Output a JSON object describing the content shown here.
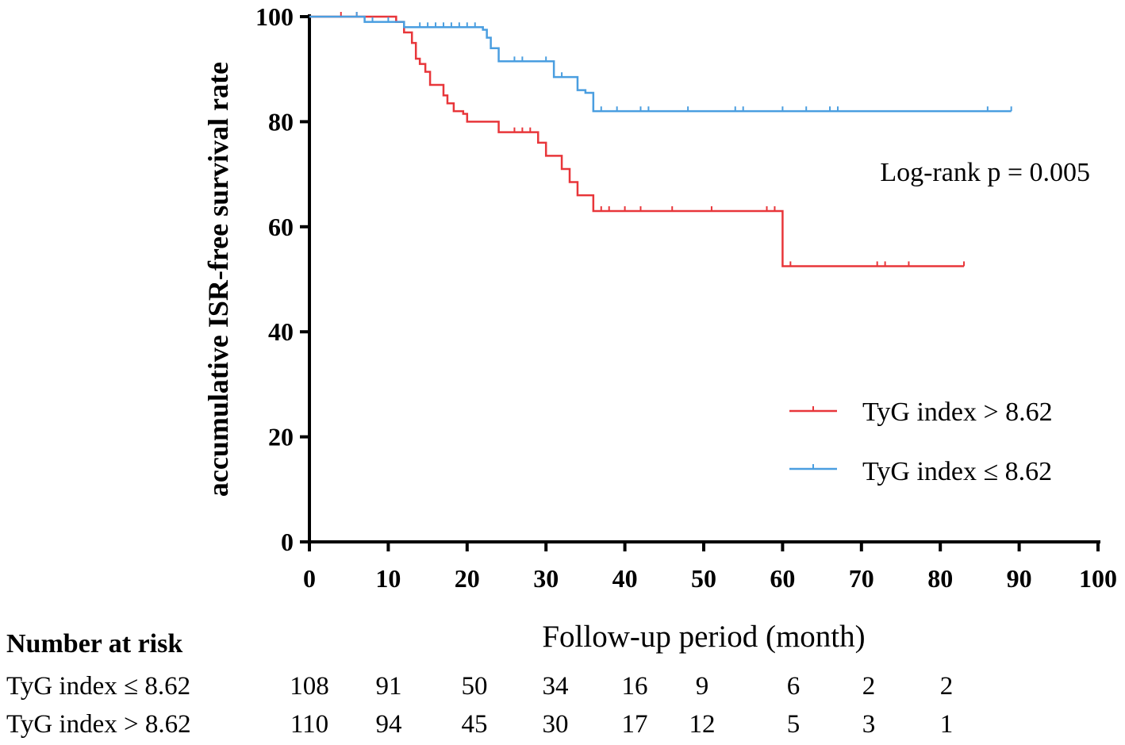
{
  "chart_data": {
    "type": "line",
    "subtype": "kaplan-meier",
    "title": "",
    "ylabel": "accumulative ISR-free survival rate",
    "xlabel": "Follow-up period (month)",
    "xlim": [
      0,
      100
    ],
    "ylim": [
      0,
      100
    ],
    "x_ticks": [
      "0",
      "10",
      "20",
      "30",
      "40",
      "50",
      "60",
      "70",
      "80",
      "90",
      "100"
    ],
    "y_ticks": [
      "0",
      "20",
      "40",
      "60",
      "80",
      "100"
    ],
    "annotation": "Log-rank p = 0.005",
    "legend_position": "right",
    "series": [
      {
        "name": "TyG index > 8.62",
        "color": "#e8363a",
        "steps": [
          [
            0,
            100
          ],
          [
            10,
            100
          ],
          [
            11,
            99
          ],
          [
            12,
            97
          ],
          [
            13,
            95
          ],
          [
            13.5,
            92
          ],
          [
            14,
            91
          ],
          [
            14.7,
            89.5
          ],
          [
            15.3,
            87
          ],
          [
            17,
            85
          ],
          [
            17.5,
            83.5
          ],
          [
            18.3,
            82
          ],
          [
            19.5,
            81.5
          ],
          [
            20,
            80
          ],
          [
            24,
            78
          ],
          [
            29,
            76
          ],
          [
            30,
            73.5
          ],
          [
            32,
            71
          ],
          [
            33,
            68.5
          ],
          [
            34,
            66
          ],
          [
            36,
            63
          ],
          [
            60,
            52.5
          ],
          [
            83,
            52.5
          ]
        ],
        "censor_x": [
          4,
          6,
          11,
          17,
          26,
          27,
          28,
          37,
          38,
          40,
          42,
          46,
          51,
          58,
          59,
          61,
          72,
          73,
          76,
          83
        ]
      },
      {
        "name": "TyG index ≤ 8.62",
        "color": "#4a9ee0",
        "steps": [
          [
            0,
            100
          ],
          [
            7,
            99
          ],
          [
            12,
            98
          ],
          [
            22,
            97.5
          ],
          [
            22.5,
            96
          ],
          [
            23,
            94
          ],
          [
            24,
            91.5
          ],
          [
            31,
            88.5
          ],
          [
            34,
            86
          ],
          [
            35,
            85.5
          ],
          [
            36,
            82
          ],
          [
            89,
            82
          ]
        ],
        "censor_x": [
          6,
          8,
          10,
          14,
          15,
          16,
          17,
          18,
          19,
          20,
          21,
          26,
          27,
          30,
          32,
          36,
          37,
          39,
          42,
          43,
          48,
          54,
          55,
          60,
          63,
          66,
          67,
          86,
          89
        ]
      }
    ]
  },
  "risk_table": {
    "title": "Number at risk",
    "rows": [
      {
        "label": "TyG index ≤ 8.62",
        "values": [
          "108",
          "91",
          "50",
          "34",
          "16",
          "9",
          "6",
          "2",
          "2"
        ]
      },
      {
        "label": "TyG index > 8.62",
        "values": [
          "110",
          "94",
          "45",
          "30",
          "17",
          "12",
          "5",
          "3",
          "1"
        ]
      }
    ]
  }
}
